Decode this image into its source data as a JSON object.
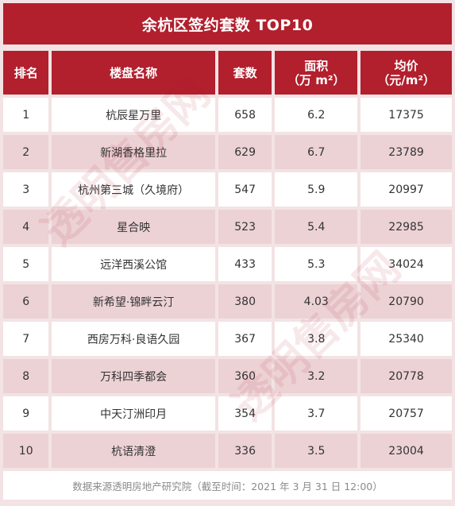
{
  "title": "余杭区签约套数 TOP10",
  "headers": {
    "rank": "排名",
    "name": "楼盘名称",
    "count": "套数",
    "area": "面积",
    "area_unit": "（万 m²）",
    "price": "均价",
    "price_unit": "（元/m²）"
  },
  "rows": [
    {
      "rank": "1",
      "name": "杭辰星万里",
      "count": "658",
      "area": "6.2",
      "price": "17375"
    },
    {
      "rank": "2",
      "name": "新湖香格里拉",
      "count": "629",
      "area": "6.7",
      "price": "23789"
    },
    {
      "rank": "3",
      "name": "杭州第三城（久境府）",
      "count": "547",
      "area": "5.9",
      "price": "20997"
    },
    {
      "rank": "4",
      "name": "星合映",
      "count": "523",
      "area": "5.4",
      "price": "22985"
    },
    {
      "rank": "5",
      "name": "远洋西溪公馆",
      "count": "433",
      "area": "5.3",
      "price": "34024"
    },
    {
      "rank": "6",
      "name": "新希望·锦畔云汀",
      "count": "380",
      "area": "4.03",
      "price": "20790"
    },
    {
      "rank": "7",
      "name": "西房万科·良语久园",
      "count": "367",
      "area": "3.8",
      "price": "25340"
    },
    {
      "rank": "8",
      "name": "万科四季都会",
      "count": "360",
      "area": "3.2",
      "price": "20778"
    },
    {
      "rank": "9",
      "name": "中天汀洲印月",
      "count": "354",
      "area": "3.7",
      "price": "20757"
    },
    {
      "rank": "10",
      "name": "杭语清澄",
      "count": "336",
      "area": "3.5",
      "price": "23004"
    }
  ],
  "footer": "数据来源透明房地产研究院（截至时间：2021 年 3 月 31 日  12:00）",
  "watermark": "透明售房网",
  "colors": {
    "header_red": "#b21f2d",
    "row_pink": "#ecd2d5"
  }
}
